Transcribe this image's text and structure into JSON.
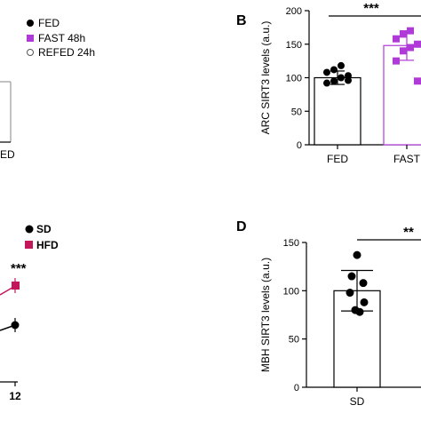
{
  "chart_data": [
    {
      "panel": "",
      "type": "bar",
      "legend": {
        "position": "top-right",
        "entries": [
          {
            "label": "FED",
            "color": "#000000",
            "marker": "circle-filled"
          },
          {
            "label": "FAST 48h",
            "color": "#b03ad8",
            "marker": "square-filled"
          },
          {
            "label": "REFED 24h",
            "color": "#ffffff",
            "marker": "circle-open"
          }
        ]
      },
      "visible_x_label": "ED"
    },
    {
      "panel": "B",
      "type": "bar",
      "ylabel": "ARC  SIRT3 levels (a.u.)",
      "ylim": [
        0,
        200
      ],
      "yticks": [
        "0",
        "50",
        "100",
        "150",
        "200"
      ],
      "categories": [
        "FED",
        "FAST"
      ],
      "series": [
        {
          "color": "#000000",
          "values": [
            100,
            148
          ],
          "errors": [
            10,
            22
          ],
          "points": [
            [
              92,
              95,
              100,
              103,
              108,
              112,
              118,
              96
            ],
            [
              125,
              140,
              145,
              150,
              158,
              165,
              170,
              95
            ]
          ]
        }
      ],
      "colors": [
        "#000000",
        "#b03ad8"
      ],
      "significance": "***"
    },
    {
      "panel": "",
      "type": "line",
      "legend": {
        "position": "top-right",
        "entries": [
          {
            "label": "SD",
            "color": "#000000",
            "marker": "circle-filled"
          },
          {
            "label": "HFD",
            "color": "#c2185b",
            "marker": "square-filled"
          }
        ]
      },
      "x_visible_tick": "12",
      "series": [
        {
          "name": "SD",
          "color": "#000000",
          "last_point": "12"
        },
        {
          "name": "HFD",
          "color": "#c2185b",
          "last_point": "12"
        }
      ],
      "significance": "***"
    },
    {
      "panel": "D",
      "type": "bar",
      "ylabel": "MBH SIRT3 levels (a.u.)",
      "ylim": [
        0,
        150
      ],
      "yticks": [
        "0",
        "50",
        "100",
        "150"
      ],
      "categories": [
        "SD"
      ],
      "series": [
        {
          "color": "#000000",
          "values": [
            100
          ],
          "errors": [
            21
          ],
          "points": [
            [
              137,
              115,
              108,
              98,
              88,
              80,
              78
            ]
          ]
        }
      ],
      "significance": "**"
    }
  ]
}
